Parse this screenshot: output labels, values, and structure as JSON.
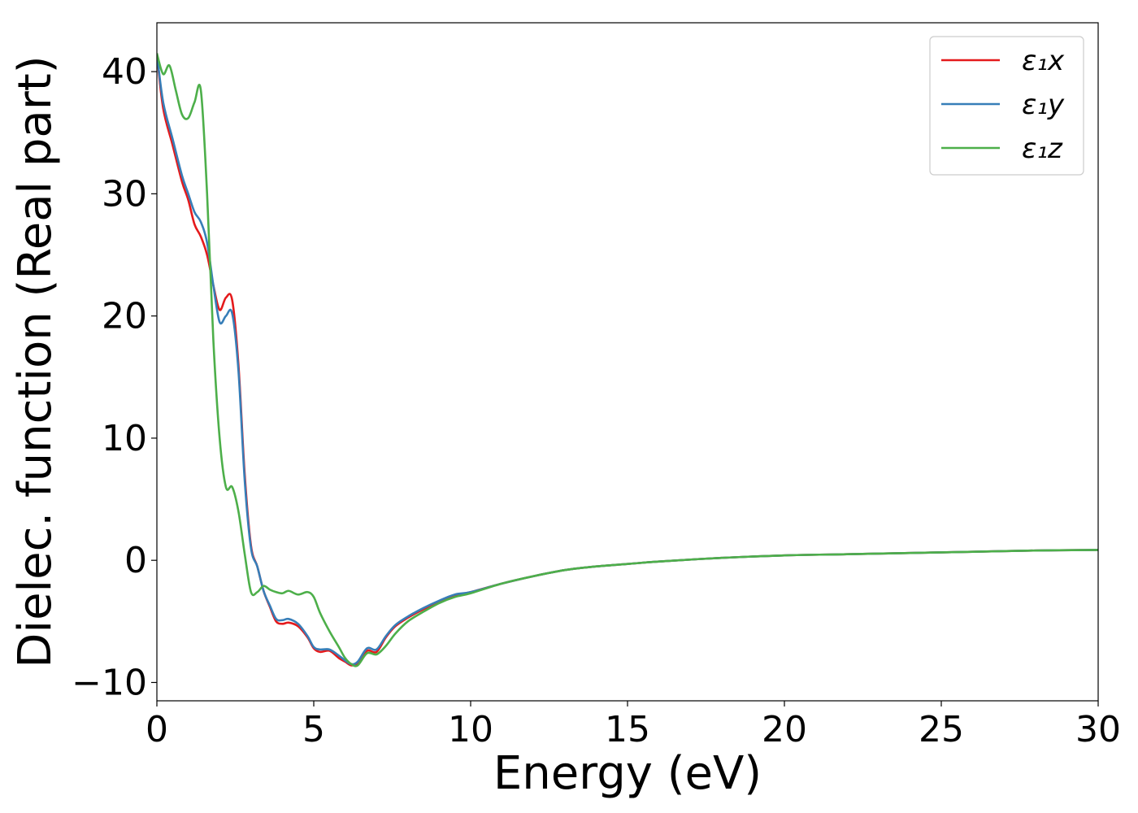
{
  "chart_data": {
    "type": "line",
    "title": "",
    "xlabel": "Energy (eV)",
    "ylabel": "Dielec. function (Real part)",
    "xlim": [
      0,
      30
    ],
    "ylim": [
      -11.5,
      44
    ],
    "xticks": [
      0,
      5,
      10,
      15,
      20,
      25,
      30
    ],
    "xtick_labels": [
      "0",
      "5",
      "10",
      "15",
      "20",
      "25",
      "30"
    ],
    "yticks": [
      -10,
      0,
      10,
      20,
      30,
      40
    ],
    "ytick_labels": [
      "−10",
      "0",
      "10",
      "20",
      "30",
      "40"
    ],
    "grid": false,
    "legend_position": "top-right",
    "series": [
      {
        "name": "ε₁x",
        "color": "#e41a1c",
        "x": [
          0,
          0.2,
          0.5,
          0.8,
          1.0,
          1.2,
          1.4,
          1.6,
          1.8,
          2.0,
          2.2,
          2.4,
          2.6,
          2.8,
          3.0,
          3.2,
          3.4,
          3.6,
          3.8,
          4.0,
          4.2,
          4.5,
          4.8,
          5.0,
          5.2,
          5.5,
          5.8,
          6.0,
          6.2,
          6.4,
          6.7,
          7.0,
          7.3,
          7.6,
          8.0,
          8.5,
          9.0,
          9.5,
          10,
          11,
          12,
          13,
          14,
          15,
          16,
          18,
          20,
          22,
          24,
          26,
          28,
          30
        ],
        "y": [
          41.5,
          37,
          34,
          31,
          29.5,
          27.5,
          26.5,
          25,
          22.5,
          20.5,
          21.5,
          21.3,
          16,
          7,
          1.2,
          -0.5,
          -2.5,
          -3.8,
          -5.0,
          -5.2,
          -5.1,
          -5.4,
          -6.3,
          -7.2,
          -7.5,
          -7.4,
          -8.0,
          -8.3,
          -8.6,
          -8.4,
          -7.4,
          -7.5,
          -6.3,
          -5.4,
          -4.7,
          -4.0,
          -3.4,
          -2.9,
          -2.6,
          -1.9,
          -1.3,
          -0.8,
          -0.5,
          -0.3,
          -0.1,
          0.2,
          0.4,
          0.5,
          0.6,
          0.7,
          0.8,
          0.85
        ]
      },
      {
        "name": "ε₁y",
        "color": "#377eb8",
        "x": [
          0,
          0.2,
          0.5,
          0.8,
          1.0,
          1.2,
          1.4,
          1.6,
          1.8,
          2.0,
          2.2,
          2.4,
          2.6,
          2.8,
          3.0,
          3.2,
          3.4,
          3.6,
          3.8,
          4.0,
          4.2,
          4.5,
          4.8,
          5.0,
          5.2,
          5.5,
          5.8,
          6.0,
          6.2,
          6.4,
          6.7,
          7.0,
          7.3,
          7.6,
          8.0,
          8.5,
          9.0,
          9.5,
          10,
          11,
          12,
          13,
          14,
          15,
          16,
          18,
          20,
          22,
          24,
          26,
          28,
          30
        ],
        "y": [
          41.5,
          37.5,
          34.5,
          31.5,
          30,
          28.5,
          27.7,
          26,
          22.5,
          19.5,
          20.0,
          20.2,
          15.5,
          6.5,
          1.0,
          -0.5,
          -2.5,
          -3.7,
          -4.8,
          -4.9,
          -4.8,
          -5.2,
          -6.2,
          -7.1,
          -7.3,
          -7.3,
          -7.8,
          -8.2,
          -8.5,
          -8.3,
          -7.2,
          -7.3,
          -6.2,
          -5.3,
          -4.6,
          -3.9,
          -3.3,
          -2.8,
          -2.6,
          -1.9,
          -1.3,
          -0.8,
          -0.5,
          -0.3,
          -0.1,
          0.2,
          0.4,
          0.5,
          0.6,
          0.7,
          0.8,
          0.85
        ]
      },
      {
        "name": "ε₁z",
        "color": "#4daf4a",
        "x": [
          0,
          0.2,
          0.4,
          0.6,
          0.8,
          1.0,
          1.2,
          1.4,
          1.6,
          1.8,
          2.0,
          2.2,
          2.4,
          2.6,
          2.8,
          3.0,
          3.2,
          3.4,
          3.6,
          3.8,
          4.0,
          4.2,
          4.5,
          4.8,
          5.0,
          5.2,
          5.5,
          5.8,
          6.0,
          6.2,
          6.4,
          6.7,
          7.0,
          7.3,
          7.6,
          8.0,
          8.5,
          9.0,
          9.5,
          10,
          11,
          12,
          13,
          14,
          15,
          16,
          18,
          20,
          22,
          24,
          26,
          28,
          30
        ],
        "y": [
          41.5,
          39.8,
          40.5,
          38.5,
          36.5,
          36.2,
          37.5,
          38.5,
          30,
          18,
          10,
          6.0,
          6.0,
          4.0,
          0.5,
          -2.6,
          -2.6,
          -2.1,
          -2.4,
          -2.6,
          -2.7,
          -2.5,
          -2.8,
          -2.6,
          -3.0,
          -4.3,
          -5.8,
          -7.1,
          -8.0,
          -8.5,
          -8.6,
          -7.6,
          -7.7,
          -7.0,
          -6.0,
          -5.0,
          -4.2,
          -3.5,
          -3.0,
          -2.7,
          -1.9,
          -1.3,
          -0.8,
          -0.5,
          -0.3,
          -0.1,
          0.2,
          0.4,
          0.5,
          0.6,
          0.7,
          0.8,
          0.85
        ]
      }
    ]
  }
}
